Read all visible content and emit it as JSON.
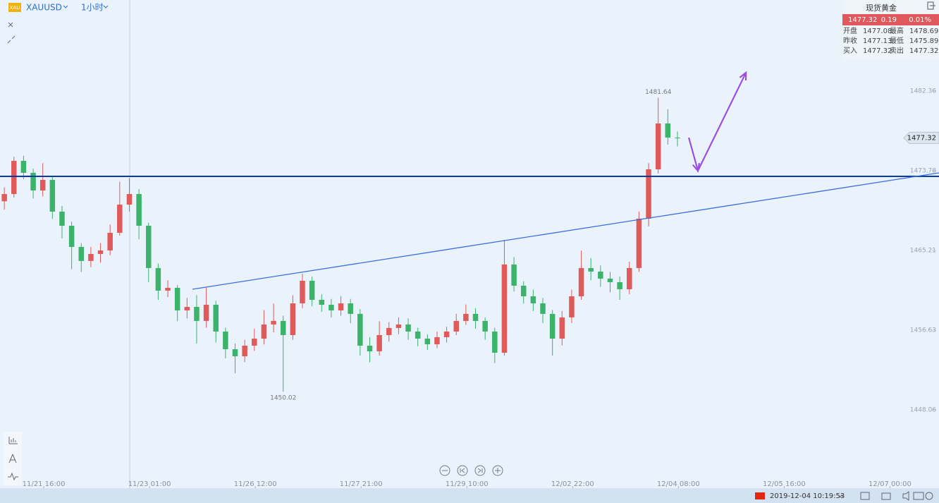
{
  "header": {
    "icon": "XAU",
    "symbol": "XAUUSD",
    "interval": "1小时"
  },
  "quote": {
    "name": "现货黄金",
    "last": "1477.32",
    "change": "0.19",
    "change_pct": "0.01%",
    "rows": [
      [
        "开盘",
        "1477.08",
        "最高",
        "1478.69"
      ],
      [
        "昨收",
        "1477.13",
        "最低",
        "1475.89"
      ],
      [
        "买入",
        "1477.32",
        "卖出",
        "1477.32"
      ]
    ]
  },
  "footer": {
    "datetime": "2019-12-04 10:19:53"
  },
  "chart_data": {
    "type": "candlestick",
    "open": [
      1470.5,
      1471.28,
      1474.85,
      1473.56,
      1471.66,
      1472.8,
      1469.39,
      1467.87,
      1465.59,
      1464.08,
      1464.83,
      1465.21,
      1467.11,
      1470.14,
      1471.28,
      1467.87,
      1463.32,
      1460.89,
      1461.19,
      1458.76,
      1459.14,
      1457.63,
      1459.37,
      1456.49,
      1454.59,
      1453.83,
      1454.97,
      1455.73,
      1457.25,
      1457.63,
      1456.11,
      1459.52,
      1461.95,
      1459.9,
      1459.37,
      1458.76,
      1459.52,
      1458.39,
      1454.97,
      1454.36,
      1456.11,
      1456.87,
      1457.25,
      1456.49,
      1455.73,
      1455.12,
      1455.88,
      1456.49,
      1457.63,
      1458.39,
      1457.63,
      1456.49,
      1454.21,
      1463.7,
      1461.42,
      1460.28,
      1459.52,
      1458.39,
      1455.73,
      1458.01,
      1460.28,
      1463.32,
      1462.94,
      1462.18,
      1461.8,
      1461.04,
      1463.32,
      1468.63,
      1473.94,
      1478.87,
      1477.35
    ],
    "high": [
      1472.0,
      1475.3,
      1475.4,
      1474.0,
      1474.6,
      1473.2,
      1470.0,
      1468.3,
      1466.0,
      1465.6,
      1466.0,
      1468.0,
      1472.6,
      1473.0,
      1471.8,
      1468.2,
      1463.8,
      1462.0,
      1461.5,
      1460.1,
      1460.4,
      1461.2,
      1459.8,
      1456.9,
      1455.2,
      1455.6,
      1456.8,
      1458.8,
      1459.5,
      1458.2,
      1460.4,
      1462.7,
      1462.4,
      1460.5,
      1460.0,
      1460.3,
      1460.0,
      1458.9,
      1455.9,
      1457.6,
      1457.5,
      1458.0,
      1457.9,
      1456.9,
      1456.2,
      1456.5,
      1457.0,
      1458.4,
      1459.4,
      1459.0,
      1458.0,
      1456.9,
      1466.35,
      1464.5,
      1461.9,
      1461.0,
      1460.1,
      1458.8,
      1458.7,
      1461.0,
      1465.2,
      1464.4,
      1463.6,
      1462.9,
      1462.4,
      1464.0,
      1469.4,
      1474.6,
      1481.64,
      1480.4,
      1478.0
    ],
    "low": [
      1469.6,
      1470.9,
      1472.9,
      1470.8,
      1471.0,
      1468.6,
      1466.5,
      1463.2,
      1462.9,
      1463.4,
      1463.9,
      1464.7,
      1466.8,
      1469.4,
      1466.4,
      1461.8,
      1459.9,
      1460.2,
      1457.6,
      1457.9,
      1455.2,
      1456.9,
      1455.3,
      1453.6,
      1452.0,
      1453.2,
      1454.4,
      1455.1,
      1456.4,
      1450.02,
      1455.6,
      1459.0,
      1459.2,
      1458.6,
      1458.0,
      1458.2,
      1457.4,
      1453.9,
      1453.2,
      1453.9,
      1455.4,
      1456.2,
      1455.6,
      1454.9,
      1454.5,
      1454.7,
      1455.3,
      1456.1,
      1457.2,
      1456.8,
      1455.6,
      1453.1,
      1453.9,
      1460.8,
      1459.5,
      1458.7,
      1457.4,
      1453.9,
      1455.0,
      1457.4,
      1459.9,
      1462.0,
      1461.3,
      1460.7,
      1459.9,
      1460.5,
      1462.9,
      1467.8,
      1473.5,
      1476.6,
      1476.4
    ],
    "close": [
      1471.28,
      1474.85,
      1473.56,
      1471.66,
      1472.8,
      1469.39,
      1467.87,
      1465.59,
      1464.08,
      1464.83,
      1465.21,
      1467.11,
      1470.14,
      1471.28,
      1467.87,
      1463.32,
      1460.89,
      1461.19,
      1458.76,
      1459.14,
      1457.63,
      1459.37,
      1456.49,
      1454.59,
      1453.83,
      1454.97,
      1455.73,
      1457.25,
      1457.63,
      1456.11,
      1459.52,
      1461.95,
      1459.9,
      1459.37,
      1458.76,
      1459.52,
      1458.39,
      1454.97,
      1454.36,
      1456.11,
      1456.87,
      1457.25,
      1456.49,
      1455.73,
      1455.12,
      1455.88,
      1456.49,
      1457.63,
      1458.39,
      1457.63,
      1456.49,
      1454.21,
      1463.7,
      1461.42,
      1460.28,
      1459.52,
      1458.39,
      1455.73,
      1458.01,
      1460.28,
      1463.32,
      1462.94,
      1462.18,
      1461.8,
      1461.04,
      1463.32,
      1468.63,
      1473.94,
      1478.87,
      1477.35,
      1477.32
    ],
    "up_color": "#e05a5a",
    "down_color": "#3bb36b",
    "xlim": [
      -0.45,
      97.2
    ],
    "xticks": [
      {
        "value": 4.1,
        "label": "11/21 16:00"
      },
      {
        "value": 15.1,
        "label": "11/23 01:00"
      },
      {
        "value": 26.1,
        "label": "11/26 12:00"
      },
      {
        "value": 37.1,
        "label": "11/27 21:00"
      },
      {
        "value": 48.1,
        "label": "11/29 10:00"
      },
      {
        "value": 59.1,
        "label": "12/02 22:00"
      },
      {
        "value": 70.1,
        "label": "12/04 08:00"
      },
      {
        "value": 81.1,
        "label": "12/05 16:00"
      },
      {
        "value": 92.1,
        "label": "12/07 00:00"
      }
    ],
    "ylim": [
      1439.64,
      1492.15
    ],
    "yticks": [
      1482.36,
      1473.78,
      1465.21,
      1456.63,
      1448.06
    ],
    "level": {
      "value": 1473.18,
      "color": "#0a3aa8"
    },
    "trendline": {
      "x": [
        19.56,
        97.2
      ],
      "y": [
        1461.04,
        1473.56
      ],
      "color": "#3a6fe0"
    },
    "arrow": {
      "x": [
        71.18,
        72.13,
        77.12
      ],
      "y": [
        1477.35,
        1473.79,
        1484.33
      ],
      "color": "#9b4fe0"
    }
  }
}
